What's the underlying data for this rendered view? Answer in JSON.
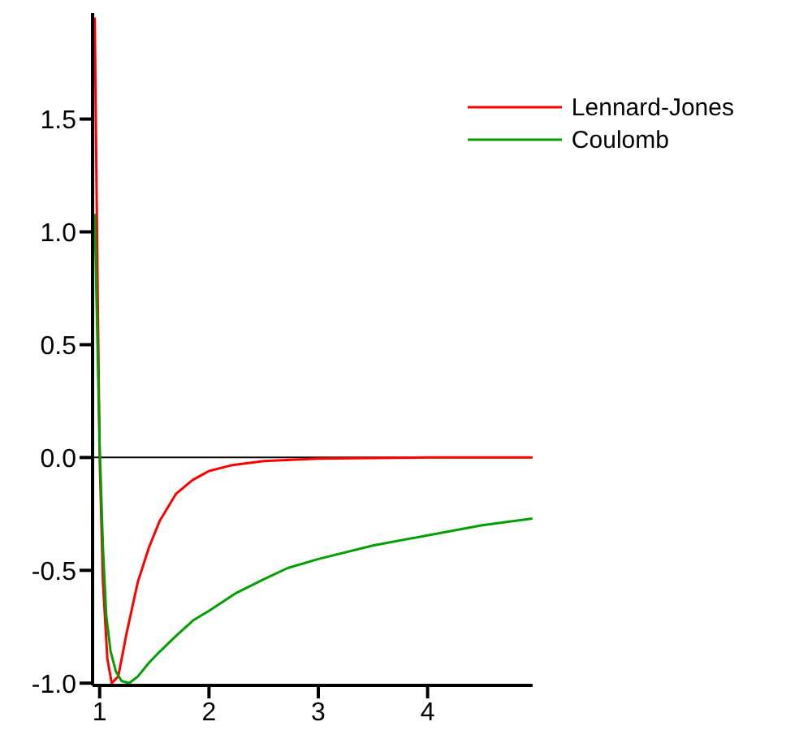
{
  "chart_data": {
    "type": "line",
    "series": [
      {
        "name": "Lennard-Jones",
        "color": "#ff0000",
        "x": [
          0.955,
          0.98,
          1.0,
          1.03,
          1.07,
          1.11,
          1.17,
          1.25,
          1.35,
          1.45,
          1.55,
          1.7,
          1.85,
          2.0,
          2.2,
          2.5,
          3.0,
          3.5,
          4.0,
          4.96
        ],
        "values": [
          1.95,
          0.8,
          0.0,
          -0.55,
          -0.89,
          -1.0,
          -0.97,
          -0.77,
          -0.55,
          -0.4,
          -0.28,
          -0.16,
          -0.1,
          -0.06,
          -0.035,
          -0.016,
          -0.005,
          -0.002,
          0.0,
          0.0
        ]
      },
      {
        "name": "Coulomb",
        "color": "#00a000",
        "x": [
          0.955,
          0.98,
          1.0,
          1.03,
          1.06,
          1.1,
          1.15,
          1.2,
          1.27,
          1.35,
          1.45,
          1.55,
          1.7,
          1.86,
          2.0,
          2.25,
          2.5,
          2.72,
          3.0,
          3.5,
          4.0,
          4.5,
          4.96
        ],
        "values": [
          1.08,
          0.5,
          0.05,
          -0.4,
          -0.7,
          -0.86,
          -0.95,
          -0.99,
          -1.0,
          -0.97,
          -0.91,
          -0.86,
          -0.79,
          -0.72,
          -0.68,
          -0.6,
          -0.54,
          -0.49,
          -0.45,
          -0.39,
          -0.345,
          -0.3,
          -0.27
        ]
      }
    ],
    "xlim": [
      0.935,
      4.96
    ],
    "xticks": [
      1,
      2,
      3,
      4
    ],
    "ylim": [
      -1.01,
      1.97
    ],
    "yticks": [
      {
        "value": -1,
        "label": "-1.0"
      },
      {
        "value": -0.5,
        "label": "-0.5"
      },
      {
        "value": 0,
        "label": "0.0"
      },
      {
        "value": 0.5,
        "label": "0.5"
      },
      {
        "value": 1,
        "label": "1.0"
      },
      {
        "value": 1.5,
        "label": "1.5"
      }
    ],
    "ref_lines": [
      {
        "axis": "y",
        "value": 0,
        "color": "#000000"
      }
    ],
    "legend": "top right",
    "grid": false,
    "marker": "none",
    "line_style": "solid"
  }
}
